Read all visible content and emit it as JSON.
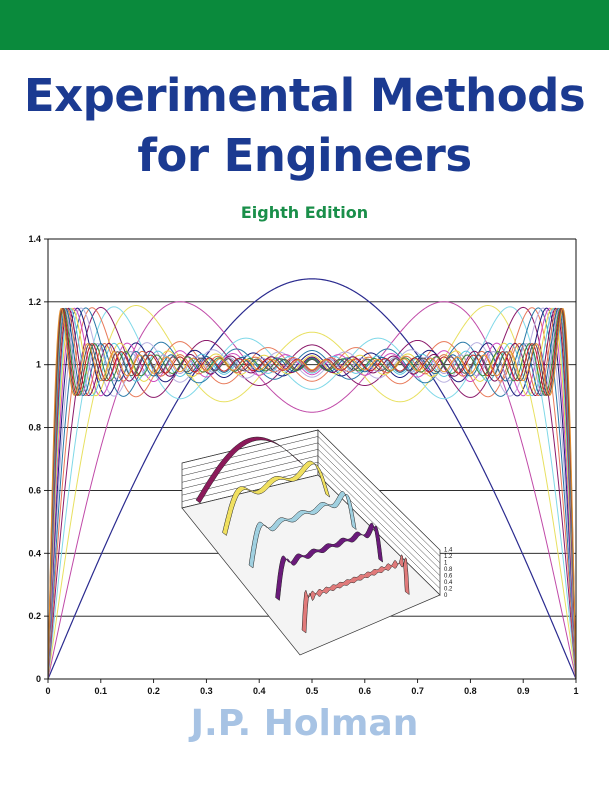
{
  "cover": {
    "title_line1": "Experimental Methods",
    "title_line2": "for Engineers",
    "edition": "Eighth Edition",
    "author": "J.P. Holman",
    "band_color": "#0a8a3c",
    "title_color": "#1b3a91",
    "edition_color": "#1a8f4a",
    "author_color": "#a7c3e4"
  },
  "chart_data": [
    {
      "type": "line",
      "title": "",
      "xlabel": "",
      "ylabel": "",
      "xlim": [
        0,
        1
      ],
      "ylim": [
        0,
        1.4
      ],
      "x_ticks": [
        "0",
        "0.1",
        "0.2",
        "0.3",
        "0.4",
        "0.5",
        "0.6",
        "0.7",
        "0.8",
        "0.9",
        "1"
      ],
      "y_ticks": [
        "0",
        "0.2",
        "0.4",
        "0.6",
        "0.8",
        "1",
        "1.2",
        "1.4"
      ],
      "grid": "horizontal",
      "legend": "none",
      "series_description": "Fourier square-wave partial sums f_n(x) = (4/pi) * sum of sin((2k-1)*pi*x)/(2k-1), k = 1..n",
      "n_terms": [
        1,
        2,
        3,
        4,
        5,
        6,
        7,
        8,
        9,
        10,
        11,
        12,
        13,
        14,
        15,
        16,
        17,
        18,
        19,
        20
      ],
      "series_colors": [
        "#2b2b8f",
        "#c04aa8",
        "#e8e060",
        "#7fd8e8",
        "#8b1a6b",
        "#e87a5a",
        "#2a7aa8",
        "#b8b0e0",
        "#1a1a7a",
        "#d04ac0",
        "#e8d84a",
        "#5ac8e0",
        "#7a0a5a",
        "#e0704a",
        "#1a6a98",
        "#a8a0d8",
        "#3a8a3a",
        "#c02020",
        "#555555",
        "#e89030"
      ],
      "sample_values": {
        "x": [
          0,
          0.1,
          0.2,
          0.3,
          0.4,
          0.5,
          0.6,
          0.7,
          0.8,
          0.9,
          1
        ],
        "n1": [
          0,
          0.393,
          0.748,
          1.03,
          1.211,
          1.273,
          1.211,
          1.03,
          0.748,
          0.393,
          0
        ]
      }
    },
    {
      "type": "line",
      "title": "",
      "projection": "3d",
      "z_ticks": [
        "0",
        "0.2",
        "0.4",
        "0.6",
        "0.8",
        "1",
        "1.2",
        "1.4"
      ],
      "n_terms": [
        1,
        3,
        5,
        7,
        15
      ],
      "series_colors": [
        "#8b1a5a",
        "#f0e060",
        "#a0d0e0",
        "#6a1a7a",
        "#e07a7a"
      ]
    }
  ]
}
